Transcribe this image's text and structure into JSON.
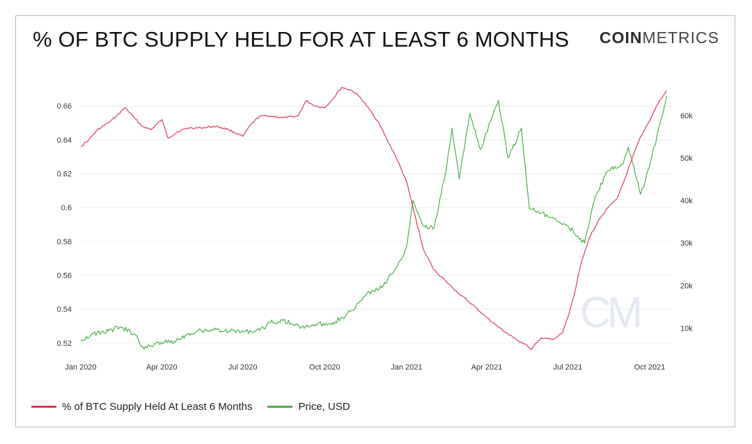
{
  "header": {
    "title": "% OF BTC SUPPLY HELD FOR AT LEAST 6 MONTHS",
    "brand_bold": "COIN",
    "brand_light": "METRICS"
  },
  "watermark": "CM",
  "colors": {
    "supply": "#e03a5a",
    "price": "#4cae4c",
    "grid": "#ededed",
    "axis_text": "#333333"
  },
  "chart_data": {
    "type": "line",
    "x_ticks": [
      "Jan 2020",
      "Apr 2020",
      "Jul 2020",
      "Oct 2020",
      "Jan 2021",
      "Apr 2021",
      "Jul 2021",
      "Oct 2021"
    ],
    "y_left": {
      "ylim": [
        0.515,
        0.672
      ],
      "ticks": [
        0.52,
        0.54,
        0.56,
        0.58,
        0.6,
        0.62,
        0.64,
        0.66
      ],
      "tick_labels": [
        "0.52",
        "0.54",
        "0.56",
        "0.58",
        "0.6",
        "0.62",
        "0.64",
        "0.66"
      ]
    },
    "y_right": {
      "ylim": [
        4500,
        67000
      ],
      "ticks": [
        10000,
        20000,
        30000,
        40000,
        50000,
        60000
      ],
      "tick_labels": [
        "10k",
        "20k",
        "30k",
        "40k",
        "50k",
        "60k"
      ]
    },
    "grid": true,
    "legend_position": "bottom-left",
    "series": [
      {
        "name": "% of BTC Supply Held At Least 6 Months",
        "axis": "left",
        "points": [
          [
            "2020-01-01",
            0.636
          ],
          [
            "2020-01-10",
            0.64
          ],
          [
            "2020-01-20",
            0.646
          ],
          [
            "2020-02-01",
            0.65
          ],
          [
            "2020-02-10",
            0.654
          ],
          [
            "2020-02-20",
            0.659
          ],
          [
            "2020-03-01",
            0.653
          ],
          [
            "2020-03-10",
            0.648
          ],
          [
            "2020-03-20",
            0.646
          ],
          [
            "2020-04-01",
            0.652
          ],
          [
            "2020-04-08",
            0.641
          ],
          [
            "2020-04-20",
            0.645
          ],
          [
            "2020-05-01",
            0.647
          ],
          [
            "2020-05-15",
            0.647
          ],
          [
            "2020-06-01",
            0.648
          ],
          [
            "2020-06-15",
            0.646
          ],
          [
            "2020-07-01",
            0.642
          ],
          [
            "2020-07-10",
            0.649
          ],
          [
            "2020-07-20",
            0.654
          ],
          [
            "2020-08-01",
            0.654
          ],
          [
            "2020-08-15",
            0.653
          ],
          [
            "2020-09-01",
            0.654
          ],
          [
            "2020-09-10",
            0.663
          ],
          [
            "2020-09-20",
            0.66
          ],
          [
            "2020-10-01",
            0.659
          ],
          [
            "2020-10-10",
            0.664
          ],
          [
            "2020-10-20",
            0.671
          ],
          [
            "2020-11-01",
            0.669
          ],
          [
            "2020-11-10",
            0.665
          ],
          [
            "2020-11-20",
            0.658
          ],
          [
            "2020-12-01",
            0.65
          ],
          [
            "2020-12-10",
            0.64
          ],
          [
            "2020-12-20",
            0.63
          ],
          [
            "2021-01-01",
            0.615
          ],
          [
            "2021-01-10",
            0.596
          ],
          [
            "2021-01-20",
            0.575
          ],
          [
            "2021-02-01",
            0.563
          ],
          [
            "2021-02-15",
            0.556
          ],
          [
            "2021-03-01",
            0.549
          ],
          [
            "2021-03-15",
            0.543
          ],
          [
            "2021-04-01",
            0.535
          ],
          [
            "2021-04-15",
            0.529
          ],
          [
            "2021-05-01",
            0.523
          ],
          [
            "2021-05-15",
            0.519
          ],
          [
            "2021-05-21",
            0.516
          ],
          [
            "2021-06-01",
            0.523
          ],
          [
            "2021-06-15",
            0.522
          ],
          [
            "2021-06-25",
            0.526
          ],
          [
            "2021-07-01",
            0.535
          ],
          [
            "2021-07-08",
            0.548
          ],
          [
            "2021-07-15",
            0.565
          ],
          [
            "2021-07-25",
            0.582
          ],
          [
            "2021-08-05",
            0.593
          ],
          [
            "2021-08-15",
            0.6
          ],
          [
            "2021-08-25",
            0.605
          ],
          [
            "2021-09-01",
            0.614
          ],
          [
            "2021-09-10",
            0.627
          ],
          [
            "2021-09-20",
            0.641
          ],
          [
            "2021-10-01",
            0.651
          ],
          [
            "2021-10-10",
            0.661
          ],
          [
            "2021-10-20",
            0.669
          ]
        ]
      },
      {
        "name": "Price, USD",
        "axis": "right",
        "points": [
          [
            "2020-01-01",
            7200
          ],
          [
            "2020-01-15",
            8600
          ],
          [
            "2020-02-01",
            9300
          ],
          [
            "2020-02-14",
            10300
          ],
          [
            "2020-03-01",
            8700
          ],
          [
            "2020-03-12",
            5000
          ],
          [
            "2020-03-25",
            6500
          ],
          [
            "2020-04-15",
            6900
          ],
          [
            "2020-05-01",
            8700
          ],
          [
            "2020-05-15",
            9500
          ],
          [
            "2020-06-01",
            9600
          ],
          [
            "2020-06-15",
            9300
          ],
          [
            "2020-07-01",
            9200
          ],
          [
            "2020-07-20",
            9400
          ],
          [
            "2020-08-01",
            11300
          ],
          [
            "2020-08-15",
            11800
          ],
          [
            "2020-09-05",
            10200
          ],
          [
            "2020-09-20",
            10800
          ],
          [
            "2020-10-10",
            11300
          ],
          [
            "2020-10-25",
            13000
          ],
          [
            "2020-11-05",
            15000
          ],
          [
            "2020-11-20",
            18500
          ],
          [
            "2020-12-01",
            19000
          ],
          [
            "2020-12-17",
            23000
          ],
          [
            "2021-01-01",
            29000
          ],
          [
            "2021-01-08",
            40000
          ],
          [
            "2021-01-20",
            34000
          ],
          [
            "2021-02-01",
            33500
          ],
          [
            "2021-02-15",
            48000
          ],
          [
            "2021-02-21",
            57000
          ],
          [
            "2021-03-01",
            45000
          ],
          [
            "2021-03-13",
            60500
          ],
          [
            "2021-03-25",
            52000
          ],
          [
            "2021-04-14",
            63500
          ],
          [
            "2021-04-25",
            50000
          ],
          [
            "2021-05-10",
            57000
          ],
          [
            "2021-05-19",
            38000
          ],
          [
            "2021-06-01",
            37000
          ],
          [
            "2021-06-20",
            35000
          ],
          [
            "2021-07-01",
            34000
          ],
          [
            "2021-07-20",
            30000
          ],
          [
            "2021-08-01",
            41000
          ],
          [
            "2021-08-15",
            47000
          ],
          [
            "2021-09-01",
            48500
          ],
          [
            "2021-09-07",
            52500
          ],
          [
            "2021-09-21",
            41500
          ],
          [
            "2021-10-01",
            48000
          ],
          [
            "2021-10-20",
            64500
          ]
        ]
      }
    ]
  },
  "legend": [
    {
      "label": "% of BTC Supply Held At Least 6 Months",
      "color": "#e03a5a"
    },
    {
      "label": "Price, USD",
      "color": "#4cae4c"
    }
  ]
}
